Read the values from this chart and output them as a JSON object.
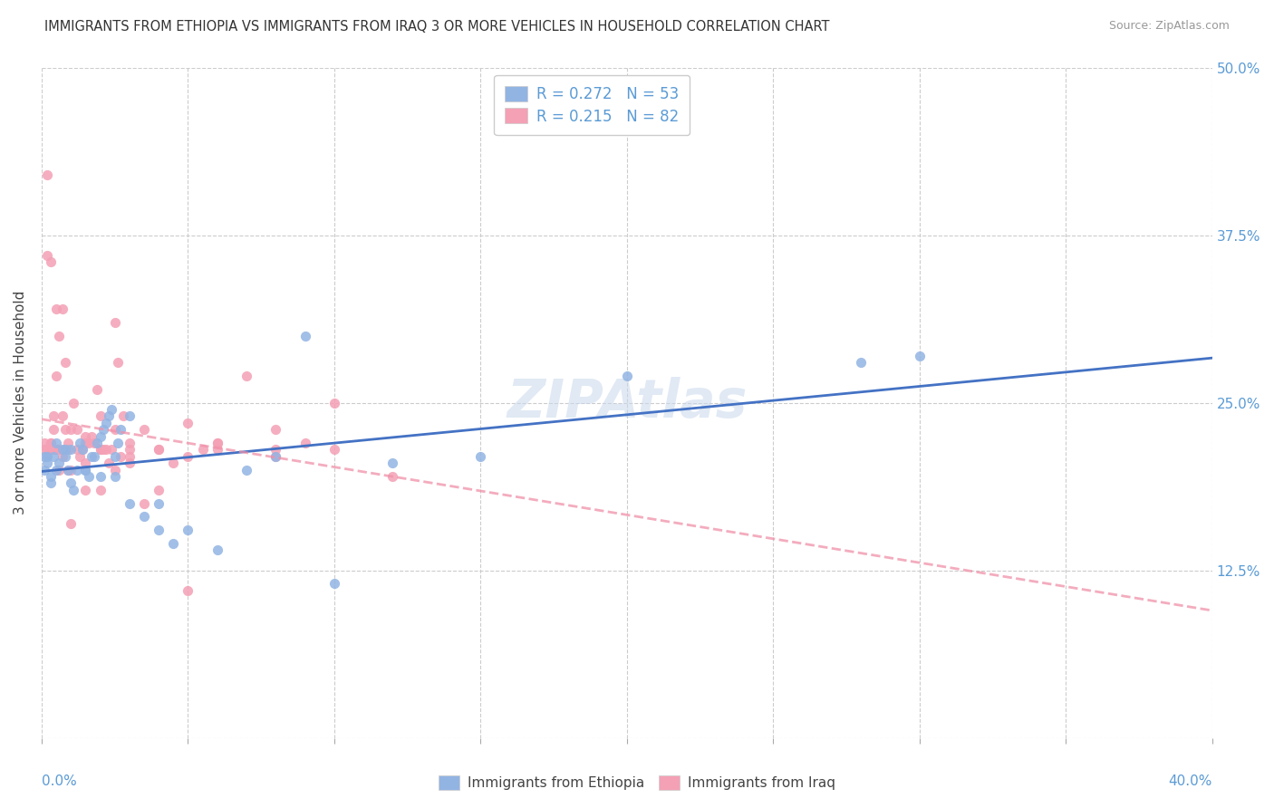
{
  "title": "IMMIGRANTS FROM ETHIOPIA VS IMMIGRANTS FROM IRAQ 3 OR MORE VEHICLES IN HOUSEHOLD CORRELATION CHART",
  "source": "Source: ZipAtlas.com",
  "ylabel_label": "3 or more Vehicles in Household",
  "legend_blue_r": "R = 0.272",
  "legend_blue_n": "N = 53",
  "legend_pink_r": "R = 0.215",
  "legend_pink_n": "N = 82",
  "legend_label_blue": "Immigrants from Ethiopia",
  "legend_label_pink": "Immigrants from Iraq",
  "blue_scatter_color": "#92b4e3",
  "pink_scatter_color": "#f4a0b5",
  "blue_line_color": "#4472c4",
  "pink_line_color": "#f090a8",
  "axis_label_color": "#5b9bd5",
  "title_color": "#333333",
  "source_color": "#999999",
  "grid_color": "#cccccc",
  "watermark_color": "#c8d8ec",
  "xlim": [
    0.0,
    0.4
  ],
  "ylim": [
    0.0,
    0.5
  ],
  "xtick_vals": [
    0.0,
    0.05,
    0.1,
    0.15,
    0.2,
    0.25,
    0.3,
    0.35,
    0.4
  ],
  "ytick_vals": [
    0.0,
    0.125,
    0.25,
    0.375,
    0.5
  ],
  "ytick_labels": [
    "",
    "12.5%",
    "25.0%",
    "37.5%",
    "50.0%"
  ],
  "blue_scatter_x": [
    0.001,
    0.002,
    0.003,
    0.004,
    0.005,
    0.006,
    0.007,
    0.008,
    0.009,
    0.01,
    0.011,
    0.012,
    0.013,
    0.014,
    0.015,
    0.016,
    0.017,
    0.018,
    0.019,
    0.02,
    0.021,
    0.022,
    0.023,
    0.024,
    0.025,
    0.026,
    0.027,
    0.03,
    0.035,
    0.04,
    0.045,
    0.05,
    0.06,
    0.07,
    0.08,
    0.09,
    0.1,
    0.12,
    0.15,
    0.2,
    0.001,
    0.002,
    0.003,
    0.005,
    0.008,
    0.01,
    0.015,
    0.02,
    0.025,
    0.03,
    0.04,
    0.28,
    0.3
  ],
  "blue_scatter_y": [
    0.2,
    0.21,
    0.195,
    0.21,
    0.22,
    0.205,
    0.215,
    0.21,
    0.2,
    0.19,
    0.185,
    0.2,
    0.22,
    0.215,
    0.2,
    0.195,
    0.21,
    0.21,
    0.22,
    0.225,
    0.23,
    0.235,
    0.24,
    0.245,
    0.195,
    0.22,
    0.23,
    0.175,
    0.165,
    0.155,
    0.145,
    0.155,
    0.14,
    0.2,
    0.21,
    0.3,
    0.115,
    0.205,
    0.21,
    0.27,
    0.21,
    0.205,
    0.19,
    0.2,
    0.215,
    0.215,
    0.2,
    0.195,
    0.21,
    0.24,
    0.175,
    0.28,
    0.285
  ],
  "pink_scatter_x": [
    0.001,
    0.002,
    0.003,
    0.004,
    0.005,
    0.006,
    0.007,
    0.008,
    0.009,
    0.01,
    0.011,
    0.012,
    0.013,
    0.014,
    0.015,
    0.016,
    0.017,
    0.018,
    0.019,
    0.02,
    0.021,
    0.022,
    0.023,
    0.024,
    0.025,
    0.026,
    0.027,
    0.028,
    0.03,
    0.035,
    0.04,
    0.045,
    0.05,
    0.055,
    0.06,
    0.07,
    0.08,
    0.09,
    0.1,
    0.12,
    0.001,
    0.002,
    0.003,
    0.004,
    0.005,
    0.006,
    0.007,
    0.008,
    0.009,
    0.01,
    0.015,
    0.02,
    0.025,
    0.03,
    0.035,
    0.04,
    0.05,
    0.06,
    0.08,
    0.1,
    0.002,
    0.003,
    0.005,
    0.007,
    0.01,
    0.015,
    0.02,
    0.03,
    0.05,
    0.08,
    0.003,
    0.006,
    0.009,
    0.012,
    0.015,
    0.02,
    0.025,
    0.03,
    0.04,
    0.06,
    0.004,
    0.008
  ],
  "pink_scatter_y": [
    0.22,
    0.42,
    0.215,
    0.24,
    0.27,
    0.3,
    0.24,
    0.28,
    0.22,
    0.23,
    0.25,
    0.23,
    0.21,
    0.215,
    0.225,
    0.22,
    0.225,
    0.22,
    0.26,
    0.24,
    0.215,
    0.215,
    0.205,
    0.215,
    0.31,
    0.28,
    0.21,
    0.24,
    0.22,
    0.23,
    0.215,
    0.205,
    0.21,
    0.215,
    0.22,
    0.27,
    0.21,
    0.22,
    0.25,
    0.195,
    0.215,
    0.215,
    0.22,
    0.23,
    0.215,
    0.2,
    0.21,
    0.23,
    0.215,
    0.16,
    0.185,
    0.185,
    0.2,
    0.205,
    0.175,
    0.185,
    0.11,
    0.215,
    0.215,
    0.215,
    0.36,
    0.355,
    0.32,
    0.32,
    0.2,
    0.205,
    0.215,
    0.215,
    0.235,
    0.23,
    0.22,
    0.215,
    0.2,
    0.215,
    0.22,
    0.215,
    0.23,
    0.21,
    0.215,
    0.22,
    0.215,
    0.215
  ]
}
